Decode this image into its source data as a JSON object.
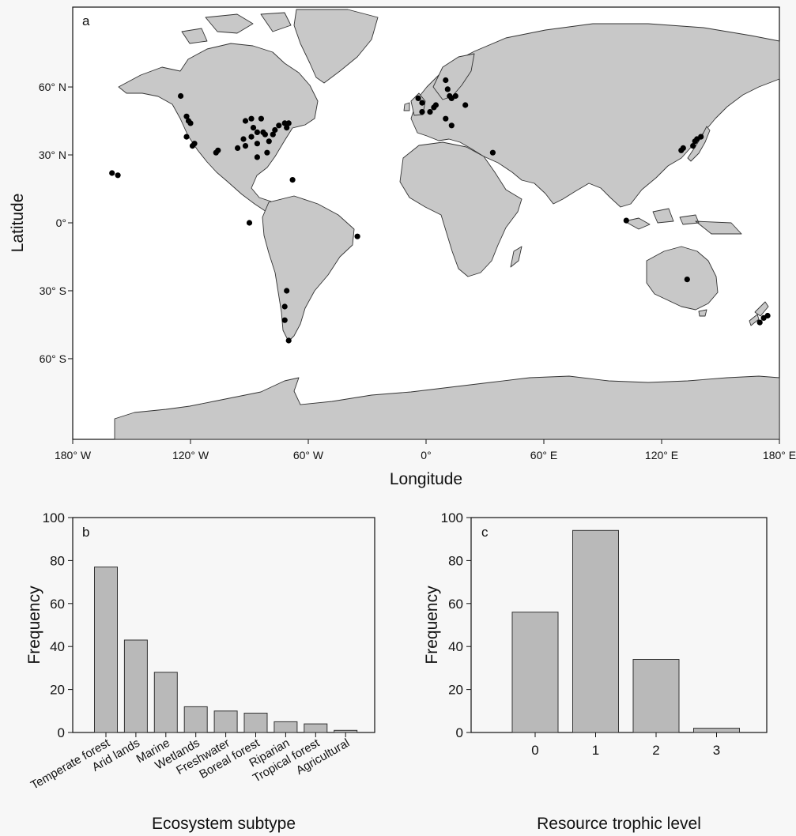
{
  "chart_data": [
    {
      "panel_letter": "a",
      "type": "scatter",
      "xlabel": "Longitude",
      "ylabel": "Latitude",
      "xlim": [
        -180,
        180
      ],
      "ylim": [
        -90,
        70
      ],
      "x_ticks": [
        {
          "value": -180,
          "label": "180° W"
        },
        {
          "value": -120,
          "label": "120° W"
        },
        {
          "value": -60,
          "label": "60° W"
        },
        {
          "value": 0,
          "label": "0°"
        },
        {
          "value": 60,
          "label": "60° E"
        },
        {
          "value": 120,
          "label": "120° E"
        },
        {
          "value": 180,
          "label": "180° E"
        }
      ],
      "y_ticks": [
        {
          "value": 60,
          "label": "60° N"
        },
        {
          "value": 30,
          "label": "30° N"
        },
        {
          "value": 0,
          "label": "0°"
        },
        {
          "value": -30,
          "label": "30° S"
        },
        {
          "value": -60,
          "label": "60° S"
        }
      ],
      "points": [
        [
          -125,
          56
        ],
        [
          -122,
          47
        ],
        [
          -121,
          45
        ],
        [
          -120,
          44
        ],
        [
          -122,
          38
        ],
        [
          -119,
          34
        ],
        [
          -118,
          35
        ],
        [
          -106,
          32
        ],
        [
          -107,
          31
        ],
        [
          -92,
          45
        ],
        [
          -89,
          46
        ],
        [
          -84,
          46
        ],
        [
          -88,
          42
        ],
        [
          -86,
          40
        ],
        [
          -89,
          38
        ],
        [
          -93,
          37
        ],
        [
          -96,
          33
        ],
        [
          -92,
          34
        ],
        [
          -86,
          35
        ],
        [
          -82,
          39
        ],
        [
          -80,
          36
        ],
        [
          -78,
          39
        ],
        [
          -77,
          41
        ],
        [
          -75,
          43
        ],
        [
          -72,
          44
        ],
        [
          -71,
          42
        ],
        [
          -70,
          44
        ],
        [
          -83,
          40
        ],
        [
          -81,
          31
        ],
        [
          -86,
          29
        ],
        [
          -68,
          19
        ],
        [
          -160,
          22
        ],
        [
          -157,
          21
        ],
        [
          -90,
          0
        ],
        [
          -35,
          -6
        ],
        [
          -71,
          -30
        ],
        [
          -72,
          -37
        ],
        [
          -72,
          -43
        ],
        [
          -70,
          -52
        ],
        [
          10,
          63
        ],
        [
          11,
          59
        ],
        [
          12,
          56
        ],
        [
          13,
          55
        ],
        [
          15,
          56
        ],
        [
          5,
          52
        ],
        [
          4,
          51
        ],
        [
          2,
          49
        ],
        [
          -2,
          49
        ],
        [
          -2,
          53
        ],
        [
          -4,
          55
        ],
        [
          20,
          52
        ],
        [
          13,
          43
        ],
        [
          34,
          31
        ],
        [
          10,
          46
        ],
        [
          137,
          36
        ],
        [
          138,
          37
        ],
        [
          136,
          34
        ],
        [
          140,
          38
        ],
        [
          131,
          33
        ],
        [
          130,
          32
        ],
        [
          102,
          1
        ],
        [
          133,
          -25
        ],
        [
          172,
          -42
        ],
        [
          170,
          -44
        ],
        [
          174,
          -41
        ]
      ]
    },
    {
      "panel_letter": "b",
      "type": "bar",
      "xlabel": "Ecosystem subtype",
      "ylabel": "Frequency",
      "ylim": [
        0,
        100
      ],
      "y_ticks": [
        0,
        20,
        40,
        60,
        80,
        100
      ],
      "categories": [
        "Temperate forest",
        "Arid lands",
        "Marine",
        "Wetlands",
        "Freshwater",
        "Boreal forest",
        "Riparian",
        "Tropical forest",
        "Agricultural"
      ],
      "values": [
        77,
        43,
        28,
        12,
        10,
        9,
        5,
        4,
        1
      ]
    },
    {
      "panel_letter": "c",
      "type": "bar",
      "xlabel": "Resource trophic level",
      "ylabel": "Frequency",
      "ylim": [
        0,
        100
      ],
      "y_ticks": [
        0,
        20,
        40,
        60,
        80,
        100
      ],
      "categories": [
        "0",
        "1",
        "2",
        "3"
      ],
      "values": [
        56,
        94,
        34,
        2
      ]
    }
  ],
  "colors": {
    "land": "#c8c8c8",
    "ocean": "#ffffff",
    "coast": "#333333",
    "bar": "#b9b9b9",
    "points": "#000000",
    "axis": "#111111"
  }
}
